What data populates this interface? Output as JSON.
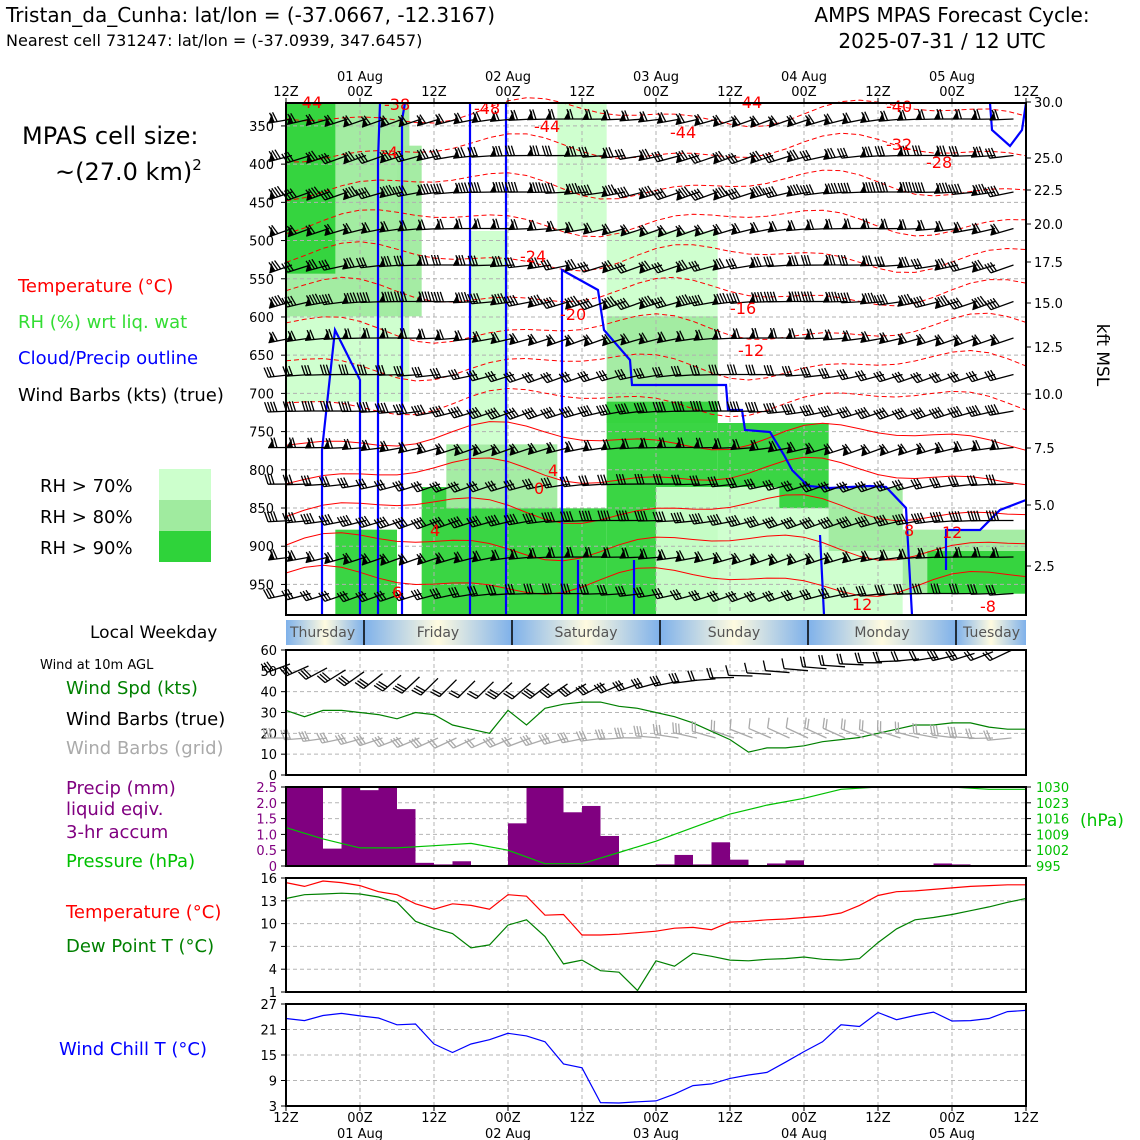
{
  "header": {
    "station": "Tristan_da_Cunha: lat/lon = (-37.0667, -12.3167)",
    "cell": "Nearest cell 731247: lat/lon = (-37.0939, 347.6457)",
    "cycle_title": "AMPS MPAS Forecast Cycle:",
    "cycle_time": "2025-07-31 / 12 UTC"
  },
  "left_panel": {
    "cell_size_label": "MPAS cell size:",
    "cell_size_value": "~(27.0 km)",
    "cell_size_exp": "2",
    "legend_temperature": "Temperature (°C)",
    "legend_rh": "RH (%) wrt liq. wat",
    "legend_cloud": "Cloud/Precip outline",
    "legend_barbs": "Wind Barbs (kts) (true)",
    "rh_70": "RH > 70%",
    "rh_80": "RH > 80%",
    "rh_90": "RH > 90%",
    "local_weekday": "Local Weekday",
    "wind10m_title": "Wind at 10m AGL",
    "wind_spd_label": "Wind Spd (kts)",
    "wind_barbs_true": "Wind Barbs (true)",
    "wind_barbs_grid": "Wind Barbs (grid)",
    "precip_label_1": "Precip (mm)",
    "precip_label_2": "liquid eqiv.",
    "precip_label_3": "3-hr accum",
    "pressure_label": "Pressure (hPa)",
    "temp_label": "Temperature (°C)",
    "dewpt_label": "Dew Point T (°C)",
    "windchill_label": "Wind Chill T (°C)"
  },
  "colors": {
    "temperature": "#ff0000",
    "rh_70": "#ccffcc",
    "rh_80": "#a0eb9f",
    "rh_90": "#2fd33a",
    "cloud": "#0000ff",
    "wind_speed": "#008000",
    "precip": "#800080",
    "pressure": "#00c000",
    "windchill": "#0000ff"
  },
  "chart_data": [
    {
      "type": "heatmap",
      "name": "upper-air time-height section",
      "time_ticks_top": [
        "12Z",
        "00Z",
        "12Z",
        "00Z",
        "12Z",
        "00Z",
        "12Z",
        "00Z",
        "12Z",
        "00Z",
        "12Z"
      ],
      "date_ticks_top": [
        "01 Aug",
        "02 Aug",
        "03 Aug",
        "04 Aug",
        "05 Aug"
      ],
      "pressure_ticks": [
        "350",
        "400",
        "450",
        "500",
        "550",
        "600",
        "650",
        "700",
        "750",
        "800",
        "850",
        "900",
        "950"
      ],
      "kft_ticks": [
        "30.0",
        "25.0",
        "22.5",
        "20.0",
        "17.5",
        "15.0",
        "12.5",
        "10.0",
        "7.5",
        "5.0",
        "2.5"
      ],
      "kft_axis_label": "kft MSL",
      "temperature_contour_labels": [
        "-44",
        "-48",
        "-44",
        "-44",
        "-44",
        "-40",
        "-32",
        "-28",
        "-38",
        "-24",
        "-20",
        "-16",
        "-12",
        "-4",
        "0",
        "4",
        "4",
        "6",
        "8",
        "12",
        "12",
        "-8"
      ]
    },
    {
      "type": "bar",
      "name": "local weekday strip",
      "categories": [
        "Thursday",
        "Friday",
        "Saturday",
        "Sunday",
        "Monday",
        "Tuesday"
      ]
    },
    {
      "type": "line",
      "name": "10 m wind speed",
      "ylim": [
        0,
        60
      ],
      "yticks": [
        "0",
        "10",
        "20",
        "30",
        "40",
        "50",
        "60"
      ],
      "x_hours": [
        0,
        3,
        6,
        9,
        12,
        15,
        18,
        21,
        24,
        27,
        30,
        33,
        36,
        39,
        42,
        45,
        48,
        51,
        54,
        57,
        60,
        63,
        66,
        69,
        72,
        75,
        78,
        81,
        84,
        87,
        90,
        93,
        96,
        99,
        102,
        105,
        108,
        111,
        114,
        117,
        120
      ],
      "values": [
        31,
        28,
        31,
        31,
        30,
        29,
        27,
        30,
        29,
        24,
        22,
        20,
        31,
        24,
        32,
        34,
        35,
        35,
        33,
        32,
        30,
        28,
        25,
        21,
        17,
        11,
        13,
        13,
        14,
        16,
        17,
        18,
        20,
        22,
        24,
        24,
        25,
        25,
        23,
        22,
        22
      ]
    },
    {
      "type": "bar",
      "name": "3-hr precipitation (mm)",
      "ylim": [
        0,
        2.5
      ],
      "yticks": [
        "0",
        "0.5",
        "1.0",
        "1.5",
        "2.0",
        "2.5"
      ],
      "x_hours": [
        0,
        3,
        6,
        9,
        12,
        15,
        18,
        21,
        24,
        27,
        30,
        33,
        36,
        39,
        42,
        45,
        48,
        51,
        54,
        57,
        60,
        63,
        66,
        69,
        72,
        75,
        78,
        81,
        84,
        87,
        90,
        93,
        96,
        99,
        102,
        105,
        108,
        111,
        114,
        117
      ],
      "values": [
        2.6,
        2.6,
        0.55,
        2.6,
        2.4,
        2.5,
        1.8,
        0.1,
        0.05,
        0.15,
        0,
        0,
        1.35,
        2.6,
        2.6,
        1.7,
        1.9,
        0.95,
        0,
        0,
        0.05,
        0.35,
        0.05,
        0.75,
        0.2,
        0,
        0.08,
        0.18,
        0,
        0,
        0,
        0,
        0,
        0,
        0,
        0.08,
        0.05,
        0,
        0,
        0
      ]
    },
    {
      "type": "line",
      "name": "sea-level pressure (hPa)",
      "ylim": [
        995,
        1030
      ],
      "yticks": [
        "995",
        "1002",
        "1009",
        "1016",
        "1023",
        "1030"
      ],
      "x_hours": [
        0,
        6,
        12,
        18,
        24,
        30,
        36,
        42,
        48,
        54,
        60,
        66,
        72,
        78,
        84,
        90,
        96,
        102,
        108,
        114,
        120
      ],
      "values": [
        1012,
        1007,
        1003,
        1003,
        1004,
        1005,
        1002,
        996,
        996,
        1001,
        1006,
        1012,
        1018,
        1022,
        1025,
        1029,
        1030,
        1030,
        1030,
        1029,
        1029
      ]
    },
    {
      "type": "line",
      "name": "temperature and dew point",
      "ylim": [
        1,
        16
      ],
      "yticks": [
        "1",
        "4",
        "7",
        "10",
        "13",
        "16"
      ],
      "x_hours": [
        0,
        3,
        6,
        9,
        12,
        15,
        18,
        21,
        24,
        27,
        30,
        33,
        36,
        39,
        42,
        45,
        48,
        51,
        54,
        57,
        60,
        63,
        66,
        69,
        72,
        75,
        78,
        81,
        84,
        87,
        90,
        93,
        96,
        99,
        102,
        105,
        108,
        111,
        114,
        117,
        120
      ],
      "series": [
        {
          "name": "Temperature (°C)",
          "values": [
            15.4,
            14.9,
            15.6,
            15.4,
            15.0,
            14.2,
            13.8,
            12.6,
            11.9,
            12.6,
            12.4,
            11.9,
            13.8,
            13.6,
            11.1,
            11.2,
            8.5,
            8.5,
            8.6,
            8.8,
            9.0,
            9.4,
            9.5,
            9.2,
            10.2,
            10.3,
            10.5,
            10.6,
            10.8,
            11.0,
            11.4,
            12.4,
            13.7,
            14.2,
            14.3,
            14.5,
            14.7,
            14.9,
            15.0,
            15.1,
            15.1
          ]
        },
        {
          "name": "Dew Point T (°C)",
          "values": [
            13.3,
            13.8,
            13.9,
            14.0,
            13.9,
            13.5,
            12.8,
            10.3,
            9.4,
            8.7,
            6.8,
            7.2,
            9.8,
            10.5,
            8.3,
            4.7,
            5.2,
            3.8,
            3.6,
            1.2,
            5.1,
            4.4,
            6.1,
            5.7,
            5.2,
            5.1,
            5.3,
            5.4,
            5.6,
            5.3,
            5.2,
            5.4,
            7.5,
            9.3,
            10.5,
            10.8,
            11.2,
            11.7,
            12.2,
            12.8,
            13.3
          ]
        }
      ]
    },
    {
      "type": "line",
      "name": "wind chill",
      "ylim": [
        3,
        27
      ],
      "yticks": [
        "3",
        "9",
        "15",
        "21",
        "27"
      ],
      "x_hours": [
        0,
        3,
        6,
        9,
        12,
        15,
        18,
        21,
        24,
        27,
        30,
        33,
        36,
        39,
        42,
        45,
        48,
        51,
        54,
        57,
        60,
        63,
        66,
        69,
        72,
        75,
        78,
        81,
        84,
        87,
        90,
        93,
        96,
        99,
        102,
        105,
        108,
        111,
        114,
        117,
        120
      ],
      "values": [
        23.6,
        23.1,
        24.3,
        24.8,
        24.2,
        23.7,
        22.1,
        22.3,
        17.6,
        15.6,
        17.6,
        18.6,
        20.1,
        19.5,
        18.1,
        12.9,
        12.0,
        3.8,
        3.7,
        4.0,
        4.2,
        5.8,
        7.8,
        8.2,
        9.5,
        10.3,
        10.9,
        13.3,
        15.8,
        18.1,
        22.1,
        21.7,
        25.0,
        23.3,
        24.3,
        25.1,
        23.0,
        23.1,
        23.6,
        25.2,
        25.5
      ]
    }
  ],
  "axes": {
    "time_ticks_bottom": [
      "12Z",
      "00Z",
      "12Z",
      "00Z",
      "12Z",
      "00Z",
      "12Z",
      "00Z",
      "12Z",
      "00Z",
      "12Z"
    ],
    "date_ticks_bottom": [
      "01 Aug",
      "02 Aug",
      "03 Aug",
      "04 Aug",
      "05 Aug"
    ],
    "pressure_units": "(hPa)"
  }
}
